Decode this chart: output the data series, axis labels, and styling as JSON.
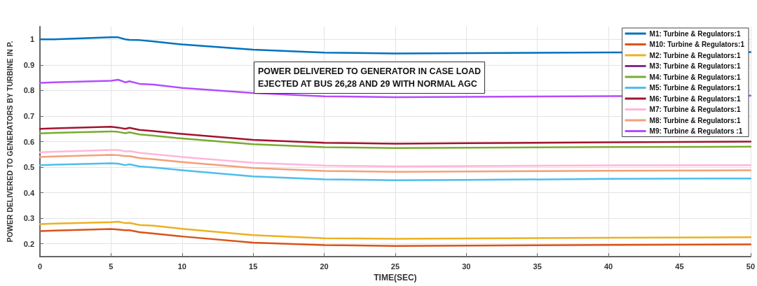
{
  "chart_data": {
    "type": "line",
    "xlabel": "TIME(SEC)",
    "ylabel": "POWER DELIVERED TO GENERATORS BY TURBINE IN P.",
    "annotations": [
      "POWER DELIVERED TO GENERATOR IN CASE LOAD\nEJECTED AT BUS 26,28 AND 29 WITH NORMAL AGC"
    ],
    "x": [
      0,
      1,
      5,
      5.5,
      6,
      6.3,
      7,
      8,
      10,
      15,
      20,
      25,
      30,
      40,
      50
    ],
    "series": [
      {
        "name": "M1: Turbine & Regulators:1",
        "color": "#0072bd",
        "values": [
          1.0,
          1.0,
          1.008,
          1.008,
          1.0,
          0.998,
          0.997,
          0.992,
          0.98,
          0.96,
          0.948,
          0.945,
          0.946,
          0.949,
          0.95
        ]
      },
      {
        "name": "M10: Turbine & Regulators:1",
        "color": "#d95319",
        "values": [
          0.25,
          0.252,
          0.258,
          0.256,
          0.253,
          0.253,
          0.246,
          0.24,
          0.229,
          0.205,
          0.195,
          0.192,
          0.193,
          0.196,
          0.198
        ]
      },
      {
        "name": "M2: Turbine & Regulators:1",
        "color": "#edb120",
        "values": [
          0.277,
          0.279,
          0.285,
          0.287,
          0.281,
          0.282,
          0.274,
          0.271,
          0.259,
          0.234,
          0.222,
          0.22,
          0.221,
          0.224,
          0.226
        ]
      },
      {
        "name": "M3: Turbine & Regulators:1",
        "color": "#7e2f8e",
        "values": [
          null,
          null,
          null,
          null,
          null,
          null,
          null,
          null,
          null,
          null,
          null,
          null,
          null,
          null,
          null
        ]
      },
      {
        "name": "M4: Turbine & Regulators:1",
        "color": "#77ac30",
        "values": [
          0.632,
          0.634,
          0.64,
          0.638,
          0.633,
          0.636,
          0.628,
          0.623,
          0.612,
          0.59,
          0.578,
          0.575,
          0.576,
          0.579,
          0.58
        ]
      },
      {
        "name": "M5: Turbine & Regulators:1",
        "color": "#4dbeee",
        "values": [
          0.508,
          0.51,
          0.515,
          0.514,
          0.508,
          0.511,
          0.503,
          0.499,
          0.488,
          0.464,
          0.452,
          0.449,
          0.45,
          0.454,
          0.456
        ]
      },
      {
        "name": "M6: Turbine & Regulators:1",
        "color": "#a2142f",
        "values": [
          0.65,
          0.652,
          0.658,
          0.655,
          0.65,
          0.654,
          0.646,
          0.641,
          0.63,
          0.607,
          0.595,
          0.592,
          0.594,
          0.597,
          0.6
        ]
      },
      {
        "name": "M7: Turbine & Regulators:1",
        "color": "#ffb6d9",
        "values": [
          0.558,
          0.56,
          0.567,
          0.567,
          0.562,
          0.563,
          0.556,
          0.551,
          0.54,
          0.517,
          0.506,
          0.503,
          0.504,
          0.507,
          0.508
        ]
      },
      {
        "name": "M8: Turbine & Regulators:1",
        "color": "#f4a07a",
        "values": [
          0.54,
          0.542,
          0.548,
          0.547,
          0.543,
          0.543,
          0.536,
          0.531,
          0.52,
          0.497,
          0.485,
          0.482,
          0.483,
          0.486,
          0.488
        ]
      },
      {
        "name": "M9: Turbine & Regulators :1",
        "color": "#b44cff",
        "values": [
          0.83,
          0.832,
          0.838,
          0.842,
          0.832,
          0.836,
          0.826,
          0.823,
          0.81,
          0.79,
          0.777,
          0.774,
          0.775,
          0.778,
          0.78
        ]
      }
    ],
    "xlim": [
      0,
      50
    ],
    "xticks": [
      0,
      5,
      10,
      15,
      20,
      25,
      30,
      35,
      40,
      45,
      50
    ],
    "ylim": [
      0.15,
      1.05
    ],
    "yticks": [
      0.2,
      0.3,
      0.4,
      0.5,
      0.6,
      0.7,
      0.8,
      0.9,
      1
    ],
    "grid": true,
    "legend": "top right",
    "marker": "none",
    "line_style": "solid"
  }
}
